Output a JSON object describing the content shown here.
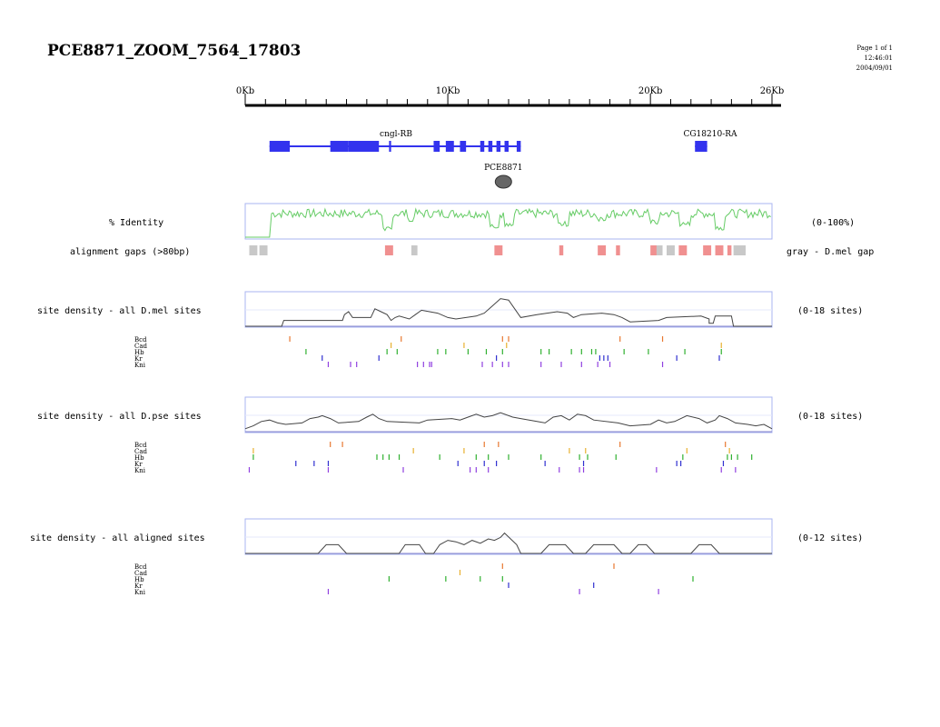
{
  "title": "PCE8871_ZOOM_7564_17803",
  "page_info": [
    "Page 1 of 1",
    "12:46:01",
    "2004/09/01"
  ],
  "ruler": {
    "max_kb": 26,
    "labels": [
      "0Kb",
      "10Kb",
      "20Kb",
      "26Kb"
    ],
    "label_positions_kb": [
      0,
      10,
      20,
      26
    ]
  },
  "genes": [
    {
      "name": "cngl-RB",
      "exons_kb": [
        [
          1.2,
          2.2
        ],
        [
          4.2,
          5.1
        ],
        [
          5.1,
          6.6
        ],
        [
          7.1,
          7.2
        ],
        [
          9.3,
          9.6
        ],
        [
          9.9,
          10.3
        ],
        [
          10.6,
          10.9
        ],
        [
          11.6,
          11.8
        ],
        [
          12.0,
          12.2
        ],
        [
          12.4,
          12.6
        ],
        [
          12.8,
          13.0
        ],
        [
          13.4,
          13.6
        ]
      ],
      "span_kb": [
        1.2,
        13.6
      ]
    },
    {
      "name": "CG18210-RA",
      "exons_kb": [
        [
          22.2,
          22.8
        ]
      ],
      "span_kb": [
        22.2,
        22.8
      ]
    }
  ],
  "element": {
    "name": "PCE8871",
    "center_kb": 12.7,
    "color": "#666666"
  },
  "identity": {
    "label": "% Identity",
    "range": "(0-100%)",
    "color": "#66cc66"
  },
  "gaps": {
    "label": "alignment gaps (>80bp)",
    "legend": "gray - D.mel gap",
    "gray_kb": [
      [
        0.2,
        0.6
      ],
      [
        0.7,
        1.1
      ],
      [
        8.2,
        8.5
      ],
      [
        20.2,
        20.6
      ],
      [
        20.8,
        21.2
      ],
      [
        24.1,
        24.7
      ]
    ],
    "red_kb": [
      [
        6.9,
        7.3
      ],
      [
        12.3,
        12.7
      ],
      [
        15.5,
        15.7
      ],
      [
        17.4,
        17.8
      ],
      [
        18.3,
        18.5
      ],
      [
        20.0,
        20.3
      ],
      [
        21.4,
        21.8
      ],
      [
        22.6,
        23.0
      ],
      [
        23.2,
        23.6
      ],
      [
        23.8,
        24.0
      ]
    ],
    "gray_color": "#c8c8c8",
    "red_color": "#f09090"
  },
  "factor_colors": {
    "Bcd": "#e87830",
    "Cad": "#e8b030",
    "Hb": "#30b030",
    "Kr": "#3030d0",
    "Kni": "#9040e0"
  },
  "density_tracks": [
    {
      "label": "site density - all D.mel sites",
      "range": "(0-18 sites)",
      "profile": [
        [
          0,
          0
        ],
        [
          1.8,
          0
        ],
        [
          1.9,
          0.2
        ],
        [
          4.8,
          0.2
        ],
        [
          4.9,
          0.4
        ],
        [
          5.1,
          0.5
        ],
        [
          5.3,
          0.3
        ],
        [
          6.2,
          0.3
        ],
        [
          6.4,
          0.6
        ],
        [
          6.7,
          0.5
        ],
        [
          7.0,
          0.4
        ],
        [
          7.2,
          0.2
        ],
        [
          7.4,
          0.3
        ],
        [
          7.6,
          0.35
        ],
        [
          8.1,
          0.25
        ],
        [
          8.4,
          0.4
        ],
        [
          8.7,
          0.55
        ],
        [
          9.1,
          0.5
        ],
        [
          9.5,
          0.45
        ],
        [
          10.0,
          0.3
        ],
        [
          10.4,
          0.25
        ],
        [
          11.4,
          0.35
        ],
        [
          11.8,
          0.45
        ],
        [
          12.2,
          0.7
        ],
        [
          12.6,
          0.95
        ],
        [
          13.0,
          0.9
        ],
        [
          13.3,
          0.6
        ],
        [
          13.6,
          0.3
        ],
        [
          14.4,
          0.4
        ],
        [
          15.4,
          0.5
        ],
        [
          15.9,
          0.45
        ],
        [
          16.2,
          0.3
        ],
        [
          16.6,
          0.4
        ],
        [
          17.6,
          0.45
        ],
        [
          18.2,
          0.4
        ],
        [
          18.6,
          0.3
        ],
        [
          19.0,
          0.15
        ],
        [
          20.4,
          0.2
        ],
        [
          20.8,
          0.3
        ],
        [
          22.5,
          0.35
        ],
        [
          22.9,
          0.25
        ],
        [
          22.9,
          0.1
        ],
        [
          23.1,
          0.1
        ],
        [
          23.2,
          0.35
        ],
        [
          24.0,
          0.35
        ],
        [
          24.1,
          0
        ],
        [
          26,
          0
        ]
      ],
      "sites": {
        "Bcd": [
          2.2,
          7.7,
          12.7,
          13.0,
          18.5,
          20.6
        ],
        "Cad": [
          7.2,
          10.8,
          12.9,
          23.5
        ],
        "Hb": [
          3.0,
          7.0,
          7.5,
          9.5,
          9.9,
          11.0,
          11.9,
          12.7,
          14.6,
          15.0,
          16.1,
          16.6,
          17.1,
          17.3,
          18.7,
          19.9,
          21.7,
          23.5
        ],
        "Kr": [
          3.8,
          6.6,
          12.4,
          17.5,
          17.7,
          17.9,
          21.3,
          23.4
        ],
        "Kni": [
          4.1,
          5.2,
          5.5,
          8.5,
          8.8,
          9.1,
          9.2,
          11.7,
          12.2,
          12.7,
          13.0,
          14.6,
          15.6,
          16.6,
          17.4,
          18.0,
          20.6
        ]
      }
    },
    {
      "label": "site density - all D.pse sites",
      "range": "(0-18 sites)",
      "profile": [
        [
          0,
          0.1
        ],
        [
          0.4,
          0.2
        ],
        [
          0.8,
          0.35
        ],
        [
          1.2,
          0.4
        ],
        [
          1.6,
          0.3
        ],
        [
          2.0,
          0.25
        ],
        [
          2.8,
          0.3
        ],
        [
          3.2,
          0.45
        ],
        [
          3.6,
          0.5
        ],
        [
          3.8,
          0.55
        ],
        [
          4.2,
          0.45
        ],
        [
          4.6,
          0.3
        ],
        [
          5.6,
          0.35
        ],
        [
          6.0,
          0.5
        ],
        [
          6.3,
          0.6
        ],
        [
          6.6,
          0.45
        ],
        [
          7.0,
          0.35
        ],
        [
          8.6,
          0.3
        ],
        [
          9.0,
          0.4
        ],
        [
          10.2,
          0.45
        ],
        [
          10.6,
          0.4
        ],
        [
          11.0,
          0.5
        ],
        [
          11.4,
          0.6
        ],
        [
          11.8,
          0.5
        ],
        [
          12.2,
          0.55
        ],
        [
          12.6,
          0.65
        ],
        [
          13.2,
          0.5
        ],
        [
          13.6,
          0.45
        ],
        [
          14.4,
          0.35
        ],
        [
          14.8,
          0.3
        ],
        [
          15.2,
          0.5
        ],
        [
          15.6,
          0.55
        ],
        [
          16.0,
          0.4
        ],
        [
          16.4,
          0.6
        ],
        [
          16.8,
          0.55
        ],
        [
          17.2,
          0.4
        ],
        [
          18.4,
          0.3
        ],
        [
          19.0,
          0.2
        ],
        [
          20.0,
          0.25
        ],
        [
          20.4,
          0.4
        ],
        [
          20.8,
          0.3
        ],
        [
          21.2,
          0.35
        ],
        [
          21.8,
          0.55
        ],
        [
          22.4,
          0.45
        ],
        [
          22.8,
          0.3
        ],
        [
          23.2,
          0.4
        ],
        [
          23.4,
          0.55
        ],
        [
          23.8,
          0.45
        ],
        [
          24.2,
          0.3
        ],
        [
          24.8,
          0.25
        ],
        [
          25.2,
          0.2
        ],
        [
          25.6,
          0.25
        ],
        [
          26,
          0.1
        ]
      ],
      "sites": {
        "Bcd": [
          4.2,
          4.8,
          11.8,
          12.5,
          18.5,
          23.7
        ],
        "Cad": [
          0.4,
          8.3,
          10.8,
          16.0,
          16.8,
          21.8,
          23.9
        ],
        "Hb": [
          0.4,
          6.5,
          6.8,
          7.1,
          7.6,
          9.6,
          11.4,
          12.0,
          13.0,
          14.6,
          16.5,
          16.9,
          18.3,
          21.6,
          23.8,
          24.0,
          24.3,
          25.0
        ],
        "Kr": [
          2.5,
          3.4,
          4.1,
          10.5,
          11.8,
          12.4,
          14.8,
          16.7,
          21.3,
          21.5,
          23.6
        ],
        "Kni": [
          0.2,
          4.1,
          7.8,
          11.1,
          11.4,
          12.0,
          15.5,
          16.5,
          16.7,
          20.3,
          23.5,
          24.2
        ]
      }
    },
    {
      "label": "site density - all aligned sites",
      "range": "(0-12 sites)",
      "profile": [
        [
          0,
          0
        ],
        [
          3.6,
          0
        ],
        [
          4.0,
          0.3
        ],
        [
          4.6,
          0.3
        ],
        [
          5.0,
          0
        ],
        [
          7.6,
          0
        ],
        [
          7.9,
          0.3
        ],
        [
          8.6,
          0.3
        ],
        [
          8.9,
          0
        ],
        [
          9.3,
          0
        ],
        [
          9.6,
          0.3
        ],
        [
          10.0,
          0.45
        ],
        [
          10.4,
          0.4
        ],
        [
          10.8,
          0.3
        ],
        [
          11.2,
          0.45
        ],
        [
          11.6,
          0.35
        ],
        [
          12.0,
          0.5
        ],
        [
          12.3,
          0.45
        ],
        [
          12.6,
          0.55
        ],
        [
          12.8,
          0.7
        ],
        [
          13.1,
          0.5
        ],
        [
          13.4,
          0.3
        ],
        [
          13.6,
          0
        ],
        [
          14.6,
          0
        ],
        [
          15.0,
          0.3
        ],
        [
          15.8,
          0.3
        ],
        [
          16.2,
          0
        ],
        [
          16.8,
          0
        ],
        [
          17.2,
          0.3
        ],
        [
          18.2,
          0.3
        ],
        [
          18.6,
          0
        ],
        [
          19.0,
          0
        ],
        [
          19.4,
          0.3
        ],
        [
          19.8,
          0.3
        ],
        [
          20.2,
          0
        ],
        [
          22.0,
          0
        ],
        [
          22.4,
          0.3
        ],
        [
          23.0,
          0.3
        ],
        [
          23.4,
          0
        ],
        [
          26,
          0
        ]
      ],
      "sites": {
        "Bcd": [
          12.7,
          18.2
        ],
        "Cad": [
          10.6
        ],
        "Hb": [
          7.1,
          9.9,
          11.6,
          12.7,
          22.1
        ],
        "Kr": [
          13.0,
          17.2
        ],
        "Kni": [
          4.1,
          16.5,
          20.4
        ]
      }
    }
  ]
}
